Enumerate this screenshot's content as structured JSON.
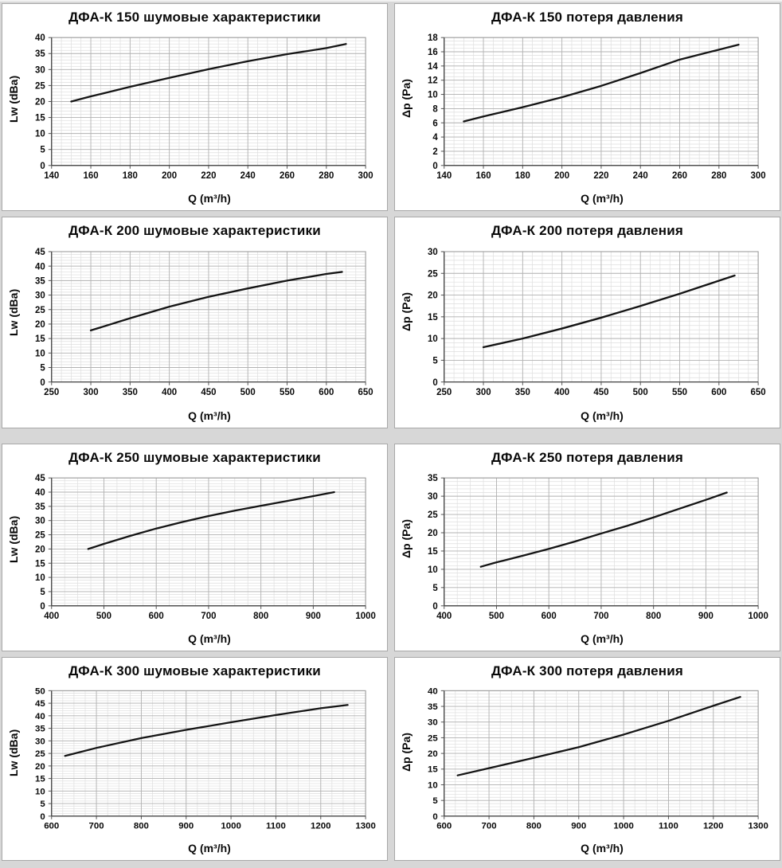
{
  "page": {
    "background": "#d7d7d7",
    "panel_background": "#ffffff"
  },
  "colors": {
    "line": "#141414",
    "grid_minor": "#dedede",
    "grid_major": "#b2b2b2",
    "plot_border": "#9a9a9a",
    "axis": "#3c3c3c",
    "tick": "#555555",
    "text": "#0a0a0a",
    "panel_border": "#a8a8a8"
  },
  "chart_data": [
    {
      "type": "line",
      "title": "ДФА-К 150 шумовые характеристики",
      "xlabel": "Q (m³/h)",
      "ylabel": "Lw (dBa)",
      "xlim": [
        140,
        300
      ],
      "xstep": 20,
      "xminor": 5,
      "ylim": [
        0,
        40
      ],
      "ystep": 5,
      "yminor": 1,
      "grid": true,
      "legend": "none",
      "points": [
        [
          150,
          20
        ],
        [
          160,
          21.6
        ],
        [
          180,
          24.6
        ],
        [
          200,
          27.4
        ],
        [
          220,
          30.1
        ],
        [
          240,
          32.6
        ],
        [
          260,
          34.8
        ],
        [
          280,
          36.7
        ],
        [
          290,
          38
        ]
      ]
    },
    {
      "type": "line",
      "title": "ДФА-К 150 потеря давления",
      "xlabel": "Q (m³/h)",
      "ylabel": "Δp (Pa)",
      "xlim": [
        140,
        300
      ],
      "xstep": 20,
      "xminor": 5,
      "ylim": [
        0,
        18
      ],
      "ystep": 2,
      "yminor": 0.5,
      "grid": true,
      "legend": "none",
      "points": [
        [
          150,
          6.2
        ],
        [
          160,
          6.9
        ],
        [
          180,
          8.2
        ],
        [
          200,
          9.6
        ],
        [
          220,
          11.2
        ],
        [
          240,
          13
        ],
        [
          260,
          14.9
        ],
        [
          280,
          16.3
        ],
        [
          290,
          17
        ]
      ]
    },
    {
      "type": "line",
      "title": "ДФА-К 200 шумовые характеристики",
      "xlabel": "Q (m³/h)",
      "ylabel": "Lw (dBa)",
      "xlim": [
        250,
        650
      ],
      "xstep": 50,
      "xminor": 12.5,
      "ylim": [
        0,
        45
      ],
      "ystep": 5,
      "yminor": 1,
      "grid": true,
      "legend": "none",
      "points": [
        [
          300,
          17.8
        ],
        [
          350,
          22
        ],
        [
          400,
          26
        ],
        [
          450,
          29.4
        ],
        [
          500,
          32.3
        ],
        [
          550,
          35
        ],
        [
          600,
          37.3
        ],
        [
          620,
          38
        ]
      ]
    },
    {
      "type": "line",
      "title": "ДФА-К 200 потеря давления",
      "xlabel": "Q (m³/h)",
      "ylabel": "Δp (Pa)",
      "xlim": [
        250,
        650
      ],
      "xstep": 50,
      "xminor": 12.5,
      "ylim": [
        0,
        30
      ],
      "ystep": 5,
      "yminor": 1,
      "grid": true,
      "legend": "none",
      "points": [
        [
          300,
          8
        ],
        [
          350,
          10
        ],
        [
          400,
          12.3
        ],
        [
          450,
          14.8
        ],
        [
          500,
          17.5
        ],
        [
          550,
          20.3
        ],
        [
          600,
          23.3
        ],
        [
          620,
          24.5
        ]
      ]
    },
    {
      "type": "line",
      "title": "ДФА-К 250 шумовые характеристики",
      "xlabel": "Q (m³/h)",
      "ylabel": "Lw (dBa)",
      "xlim": [
        400,
        1000
      ],
      "xstep": 100,
      "xminor": 25,
      "ylim": [
        0,
        45
      ],
      "ystep": 5,
      "yminor": 1,
      "grid": true,
      "legend": "none",
      "points": [
        [
          470,
          20
        ],
        [
          500,
          21.8
        ],
        [
          550,
          24.6
        ],
        [
          600,
          27.2
        ],
        [
          650,
          29.5
        ],
        [
          700,
          31.6
        ],
        [
          750,
          33.5
        ],
        [
          800,
          35.2
        ],
        [
          850,
          36.9
        ],
        [
          900,
          38.6
        ],
        [
          940,
          40
        ]
      ]
    },
    {
      "type": "line",
      "title": "ДФА-К 250 потеря давления",
      "xlabel": "Q (m³/h)",
      "ylabel": "Δp (Pa)",
      "xlim": [
        400,
        1000
      ],
      "xstep": 100,
      "xminor": 25,
      "ylim": [
        0,
        35
      ],
      "ystep": 5,
      "yminor": 1,
      "grid": true,
      "legend": "none",
      "points": [
        [
          470,
          10.7
        ],
        [
          500,
          11.9
        ],
        [
          550,
          13.7
        ],
        [
          600,
          15.6
        ],
        [
          650,
          17.6
        ],
        [
          700,
          19.8
        ],
        [
          750,
          21.9
        ],
        [
          800,
          24.2
        ],
        [
          850,
          26.6
        ],
        [
          900,
          29
        ],
        [
          940,
          31
        ]
      ]
    },
    {
      "type": "line",
      "title": "ДФА-К 300 шумовые характеристики",
      "xlabel": "Q (m³/h)",
      "ylabel": "Lw (dBa)",
      "xlim": [
        600,
        1300
      ],
      "xstep": 100,
      "xminor": 25,
      "ylim": [
        0,
        50
      ],
      "ystep": 5,
      "yminor": 1,
      "grid": true,
      "legend": "none",
      "points": [
        [
          630,
          24
        ],
        [
          700,
          27.2
        ],
        [
          800,
          31.1
        ],
        [
          900,
          34.4
        ],
        [
          1000,
          37.4
        ],
        [
          1100,
          40.3
        ],
        [
          1200,
          43
        ],
        [
          1260,
          44.3
        ]
      ]
    },
    {
      "type": "line",
      "title": "ДФА-К 300 потеря давления",
      "xlabel": "Q (m³/h)",
      "ylabel": "Δp (Pa)",
      "xlim": [
        600,
        1300
      ],
      "xstep": 100,
      "xminor": 25,
      "ylim": [
        0,
        40
      ],
      "ystep": 5,
      "yminor": 1,
      "grid": true,
      "legend": "none",
      "points": [
        [
          630,
          13
        ],
        [
          700,
          15.3
        ],
        [
          800,
          18.6
        ],
        [
          900,
          22
        ],
        [
          1000,
          26
        ],
        [
          1100,
          30.4
        ],
        [
          1200,
          35.2
        ],
        [
          1260,
          38
        ]
      ]
    }
  ]
}
